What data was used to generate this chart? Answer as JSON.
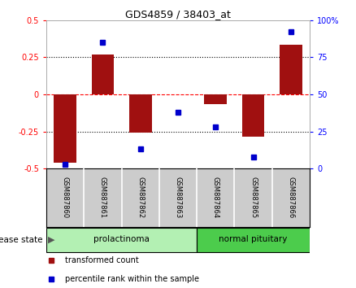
{
  "title": "GDS4859 / 38403_at",
  "samples": [
    "GSM887860",
    "GSM887861",
    "GSM887862",
    "GSM887863",
    "GSM887864",
    "GSM887865",
    "GSM887866"
  ],
  "transformed_count": [
    -0.46,
    0.27,
    -0.26,
    0.0,
    -0.065,
    -0.285,
    0.335
  ],
  "percentile_rank": [
    3,
    85,
    13,
    38,
    28,
    8,
    92
  ],
  "disease_groups": [
    {
      "label": "prolactinoma",
      "start": 0,
      "end": 4,
      "color": "#b3f0b3"
    },
    {
      "label": "normal pituitary",
      "start": 4,
      "end": 7,
      "color": "#4ccc4c"
    }
  ],
  "bar_color": "#a01010",
  "dot_color": "#0000cc",
  "ylim_left": [
    -0.5,
    0.5
  ],
  "ylim_right": [
    0,
    100
  ],
  "yticks_left": [
    -0.5,
    -0.25,
    0,
    0.25,
    0.5
  ],
  "yticks_right": [
    0,
    25,
    50,
    75,
    100
  ],
  "ytick_labels_left": [
    "-0.5",
    "-0.25",
    "0",
    "0.25",
    "0.5"
  ],
  "ytick_labels_right": [
    "0",
    "25",
    "50",
    "75",
    "100%"
  ],
  "hlines": [
    0.25,
    0.0,
    -0.25
  ],
  "hline_styles": [
    "dotted",
    "dashed",
    "dotted"
  ],
  "hline_colors": [
    "black",
    "red",
    "black"
  ],
  "legend_items": [
    {
      "label": "transformed count",
      "color": "#a01010",
      "marker": "s"
    },
    {
      "label": "percentile rank within the sample",
      "color": "#0000cc",
      "marker": "s"
    }
  ],
  "disease_state_label": "disease state",
  "background_color": "#ffffff",
  "label_box_color": "#cccccc",
  "bar_width": 0.6
}
